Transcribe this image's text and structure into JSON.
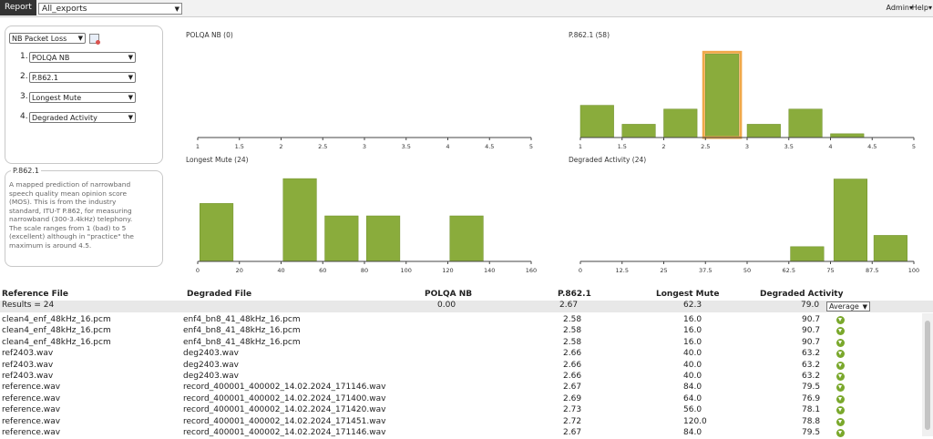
{
  "header": {
    "report_label": "Report",
    "export_selected": "All_exports",
    "admin_label": "Admin",
    "help_label": "Help"
  },
  "sidebar": {
    "mode_selected": "NB Packet Loss",
    "metrics": [
      {
        "index": "1.",
        "value": "POLQA NB"
      },
      {
        "index": "2.",
        "value": "P.862.1"
      },
      {
        "index": "3.",
        "value": "Longest Mute"
      },
      {
        "index": "4.",
        "value": "Degraded Activity"
      }
    ],
    "desc_title": "P.862.1",
    "desc_text": "A mapped prediction of narrowband speech quality mean opinion score (MOS). This is from the industry standard, ITU-T P.862, for measuring narrowband (300-3.4kHz) telephony. The scale ranges from 1 (bad) to 5 (excellent) although in \"practice\" the maximum is around 4.5."
  },
  "colors": {
    "bar": "#8aac3c",
    "bar_edge": "#6f8f2a",
    "highlight": "#f0a84a",
    "download": "#7aa82c"
  },
  "chart_data": [
    {
      "type": "bar",
      "title": "POLQA NB (0)",
      "x_ticks": [
        "1",
        "1.5",
        "2",
        "2.5",
        "3",
        "3.5",
        "4",
        "4.5",
        "5"
      ],
      "bins": [],
      "ymax": 1
    },
    {
      "type": "bar",
      "title": "P.862.1 (58)",
      "x_ticks": [
        "1",
        "1.5",
        "2",
        "2.5",
        "3",
        "3.5",
        "4",
        "4.5",
        "5"
      ],
      "bins": [
        {
          "start": 1.0,
          "end": 1.4,
          "value": 17
        },
        {
          "start": 1.5,
          "end": 1.9,
          "value": 7
        },
        {
          "start": 2.0,
          "end": 2.4,
          "value": 15
        },
        {
          "start": 2.5,
          "end": 2.9,
          "value": 44,
          "highlight": true
        },
        {
          "start": 3.0,
          "end": 3.4,
          "value": 7
        },
        {
          "start": 3.5,
          "end": 3.9,
          "value": 15
        },
        {
          "start": 4.0,
          "end": 4.4,
          "value": 2
        }
      ],
      "ymax": 48
    },
    {
      "type": "bar",
      "title": "Longest Mute (24)",
      "x_ticks": [
        "0",
        "20",
        "40",
        "60",
        "80",
        "100",
        "120",
        "140",
        "160"
      ],
      "bins": [
        {
          "start": 1,
          "end": 17,
          "value": 7
        },
        {
          "start": 41,
          "end": 57,
          "value": 10
        },
        {
          "start": 61,
          "end": 77,
          "value": 5.5
        },
        {
          "start": 81,
          "end": 97,
          "value": 5.5
        },
        {
          "start": 121,
          "end": 137,
          "value": 5.5
        }
      ],
      "ymax": 11
    },
    {
      "type": "bar",
      "title": "Degraded Activity (24)",
      "x_ticks": [
        "0",
        "12.5",
        "25",
        "37.5",
        "50",
        "62.5",
        "75",
        "87.5",
        "100"
      ],
      "bins": [
        {
          "start": 63,
          "end": 73,
          "value": 1.7
        },
        {
          "start": 76,
          "end": 86,
          "value": 9.5
        },
        {
          "start": 88,
          "end": 98,
          "value": 3.0
        }
      ],
      "ymax": 10.5
    }
  ],
  "table": {
    "headers": {
      "ref": "Reference File",
      "deg": "Degraded File",
      "polqa": "POLQA NB",
      "p862": "P.862.1",
      "mute": "Longest Mute",
      "activity": "Degraded Activity"
    },
    "results": {
      "label": "Results = 24",
      "polqa": "0.00",
      "p862": "2.67",
      "mute": "62.3",
      "activity": "79.0",
      "agg_selected": "Average"
    },
    "rows": [
      {
        "ref": "clean4_enf_48kHz_16.pcm",
        "deg": "enf4_bn8_41_48kHz_16.pcm",
        "p862": "2.58",
        "mute": "16.0",
        "activity": "90.7"
      },
      {
        "ref": "clean4_enf_48kHz_16.pcm",
        "deg": "enf4_bn8_41_48kHz_16.pcm",
        "p862": "2.58",
        "mute": "16.0",
        "activity": "90.7"
      },
      {
        "ref": "clean4_enf_48kHz_16.pcm",
        "deg": "enf4_bn8_41_48kHz_16.pcm",
        "p862": "2.58",
        "mute": "16.0",
        "activity": "90.7"
      },
      {
        "ref": "ref2403.wav",
        "deg": "deg2403.wav",
        "p862": "2.66",
        "mute": "40.0",
        "activity": "63.2"
      },
      {
        "ref": "ref2403.wav",
        "deg": "deg2403.wav",
        "p862": "2.66",
        "mute": "40.0",
        "activity": "63.2"
      },
      {
        "ref": "ref2403.wav",
        "deg": "deg2403.wav",
        "p862": "2.66",
        "mute": "40.0",
        "activity": "63.2"
      },
      {
        "ref": "reference.wav",
        "deg": "record_400001_400002_14.02.2024_171146.wav",
        "p862": "2.67",
        "mute": "84.0",
        "activity": "79.5"
      },
      {
        "ref": "reference.wav",
        "deg": "record_400001_400002_14.02.2024_171400.wav",
        "p862": "2.69",
        "mute": "64.0",
        "activity": "76.9"
      },
      {
        "ref": "reference.wav",
        "deg": "record_400001_400002_14.02.2024_171420.wav",
        "p862": "2.73",
        "mute": "56.0",
        "activity": "78.1"
      },
      {
        "ref": "reference.wav",
        "deg": "record_400001_400002_14.02.2024_171451.wav",
        "p862": "2.72",
        "mute": "120.0",
        "activity": "78.8"
      },
      {
        "ref": "reference.wav",
        "deg": "record_400001_400002_14.02.2024_171146.wav",
        "p862": "2.67",
        "mute": "84.0",
        "activity": "79.5"
      }
    ]
  }
}
